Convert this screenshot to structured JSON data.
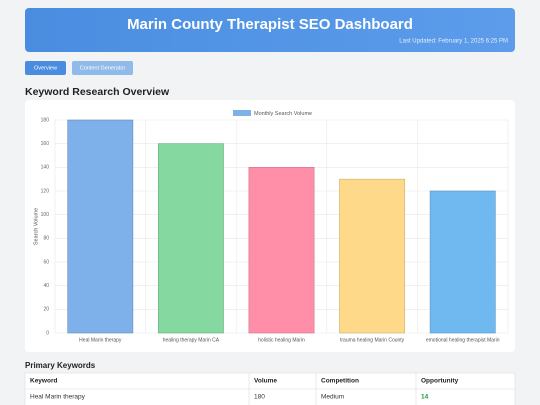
{
  "header": {
    "title": "Marin County Therapist SEO Dashboard",
    "updated": "Last Updated: February 1, 2025 6:25 PM"
  },
  "tabs": [
    "Overview",
    "Content Generator"
  ],
  "section_title": "Keyword Research Overview",
  "chart_data": {
    "type": "bar",
    "categories": [
      "Heal Marin therapy",
      "healing therapy Marin CA",
      "holistic healing Marin",
      "trauma healing Marin County",
      "emotional healing therapist Marin"
    ],
    "series": [
      {
        "name": "Monthly Search Volume",
        "values": [
          180,
          160,
          140,
          130,
          120
        ],
        "colors": [
          "#7eb0ea",
          "#84d8a0",
          "#ff8fa8",
          "#ffd98a",
          "#70b8f0"
        ]
      }
    ],
    "y_label": "Search Volume",
    "ylim": [
      0,
      180
    ],
    "yticks": [
      0,
      20,
      40,
      60,
      80,
      100,
      120,
      140,
      160,
      180
    ],
    "grid": true,
    "legend": "top"
  },
  "table": {
    "title": "Primary Keywords",
    "headers": [
      "Keyword",
      "Volume",
      "Competition",
      "Opportunity"
    ],
    "rows": [
      [
        "Heal Marin therapy",
        "180",
        "Medium",
        "14"
      ]
    ]
  }
}
